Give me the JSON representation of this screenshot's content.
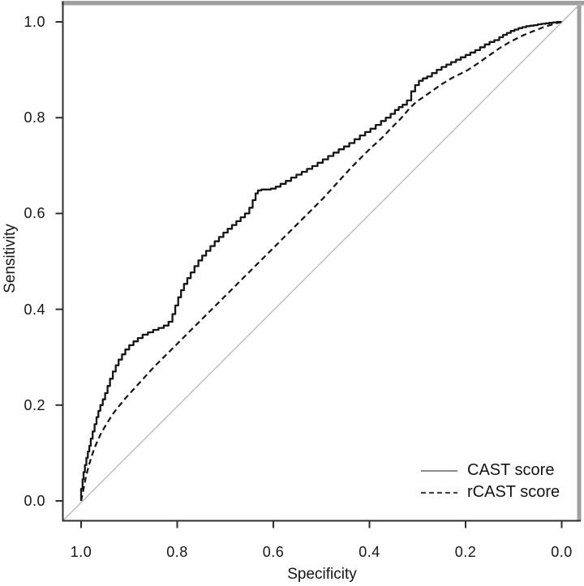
{
  "figure": {
    "background": "#ffffff"
  },
  "chart_data": {
    "type": "line",
    "subtype": "roc-curves",
    "title": "",
    "xlabel": "Specificity",
    "ylabel": "Sensitivity",
    "x_tick_labels": [
      "1.0",
      "0.8",
      "0.6",
      "0.4",
      "0.2",
      "0.0"
    ],
    "y_tick_labels": [
      "0.0",
      "0.2",
      "0.4",
      "0.6",
      "0.8",
      "1.0"
    ],
    "x_axis": {
      "label": "Specificity",
      "min": 0.0,
      "max": 1.0,
      "reversed": true,
      "ticks": [
        1.0,
        0.8,
        0.6,
        0.4,
        0.2,
        0.0
      ]
    },
    "y_axis": {
      "label": "Sensitivity",
      "min": 0.0,
      "max": 1.0,
      "ticks": [
        0.0,
        0.2,
        0.4,
        0.6,
        0.8,
        1.0
      ]
    },
    "grid": false,
    "diagonal_reference_line": {
      "from": [
        1.0,
        0.0
      ],
      "to": [
        0.0,
        1.0
      ],
      "color": "#b3b3b3"
    },
    "legend": {
      "position": "bottom-right",
      "entries": [
        {
          "label": "CAST score",
          "line_style": "solid"
        },
        {
          "label": "rCAST score",
          "line_style": "dashed"
        }
      ]
    },
    "colors": {
      "curve": "#141414",
      "axis": "#2e2e2e",
      "text": "#161616",
      "frame": "#9f9f9f",
      "diagonal": "#b3b3b3"
    },
    "series": [
      {
        "name": "CAST score",
        "line_style": "solid",
        "color": "#141414",
        "points_format": [
          "specificity",
          "sensitivity"
        ],
        "points": [
          [
            1.0,
            0.0
          ],
          [
            0.997,
            0.025
          ],
          [
            0.995,
            0.045
          ],
          [
            0.992,
            0.06
          ],
          [
            0.989,
            0.075
          ],
          [
            0.986,
            0.09
          ],
          [
            0.983,
            0.103
          ],
          [
            0.98,
            0.115
          ],
          [
            0.976,
            0.13
          ],
          [
            0.972,
            0.145
          ],
          [
            0.968,
            0.16
          ],
          [
            0.964,
            0.175
          ],
          [
            0.96,
            0.188
          ],
          [
            0.955,
            0.2
          ],
          [
            0.95,
            0.212
          ],
          [
            0.945,
            0.225
          ],
          [
            0.94,
            0.24
          ],
          [
            0.934,
            0.255
          ],
          [
            0.928,
            0.27
          ],
          [
            0.922,
            0.283
          ],
          [
            0.915,
            0.295
          ],
          [
            0.908,
            0.306
          ],
          [
            0.9,
            0.316
          ],
          [
            0.891,
            0.325
          ],
          [
            0.882,
            0.333
          ],
          [
            0.872,
            0.34
          ],
          [
            0.861,
            0.347
          ],
          [
            0.85,
            0.352
          ],
          [
            0.839,
            0.357
          ],
          [
            0.828,
            0.361
          ],
          [
            0.818,
            0.366
          ],
          [
            0.81,
            0.374
          ],
          [
            0.804,
            0.39
          ],
          [
            0.798,
            0.408
          ],
          [
            0.792,
            0.425
          ],
          [
            0.786,
            0.44
          ],
          [
            0.779,
            0.453
          ],
          [
            0.772,
            0.465
          ],
          [
            0.764,
            0.477
          ],
          [
            0.756,
            0.49
          ],
          [
            0.748,
            0.502
          ],
          [
            0.74,
            0.512
          ],
          [
            0.731,
            0.522
          ],
          [
            0.722,
            0.532
          ],
          [
            0.713,
            0.542
          ],
          [
            0.704,
            0.551
          ],
          [
            0.695,
            0.56
          ],
          [
            0.686,
            0.568
          ],
          [
            0.677,
            0.576
          ],
          [
            0.668,
            0.584
          ],
          [
            0.659,
            0.592
          ],
          [
            0.65,
            0.6
          ],
          [
            0.643,
            0.612
          ],
          [
            0.637,
            0.628
          ],
          [
            0.632,
            0.642
          ],
          [
            0.625,
            0.648
          ],
          [
            0.615,
            0.65
          ],
          [
            0.605,
            0.65
          ],
          [
            0.595,
            0.652
          ],
          [
            0.585,
            0.656
          ],
          [
            0.574,
            0.662
          ],
          [
            0.563,
            0.668
          ],
          [
            0.552,
            0.675
          ],
          [
            0.541,
            0.681
          ],
          [
            0.53,
            0.687
          ],
          [
            0.519,
            0.693
          ],
          [
            0.508,
            0.699
          ],
          [
            0.497,
            0.706
          ],
          [
            0.486,
            0.713
          ],
          [
            0.475,
            0.72
          ],
          [
            0.464,
            0.727
          ],
          [
            0.453,
            0.734
          ],
          [
            0.442,
            0.74
          ],
          [
            0.431,
            0.747
          ],
          [
            0.42,
            0.755
          ],
          [
            0.409,
            0.763
          ],
          [
            0.398,
            0.77
          ],
          [
            0.387,
            0.777
          ],
          [
            0.376,
            0.785
          ],
          [
            0.366,
            0.793
          ],
          [
            0.356,
            0.8
          ],
          [
            0.347,
            0.808
          ],
          [
            0.339,
            0.816
          ],
          [
            0.331,
            0.822
          ],
          [
            0.322,
            0.827
          ],
          [
            0.313,
            0.836
          ],
          [
            0.305,
            0.855
          ],
          [
            0.297,
            0.868
          ],
          [
            0.289,
            0.877
          ],
          [
            0.28,
            0.882
          ],
          [
            0.27,
            0.886
          ],
          [
            0.26,
            0.893
          ],
          [
            0.25,
            0.9
          ],
          [
            0.24,
            0.906
          ],
          [
            0.23,
            0.911
          ],
          [
            0.22,
            0.916
          ],
          [
            0.21,
            0.921
          ],
          [
            0.2,
            0.926
          ],
          [
            0.19,
            0.931
          ],
          [
            0.18,
            0.936
          ],
          [
            0.17,
            0.941
          ],
          [
            0.16,
            0.947
          ],
          [
            0.15,
            0.953
          ],
          [
            0.14,
            0.958
          ],
          [
            0.13,
            0.962
          ],
          [
            0.122,
            0.968
          ],
          [
            0.114,
            0.973
          ],
          [
            0.106,
            0.977
          ],
          [
            0.098,
            0.981
          ],
          [
            0.09,
            0.984
          ],
          [
            0.082,
            0.987
          ],
          [
            0.074,
            0.989
          ],
          [
            0.066,
            0.991
          ],
          [
            0.058,
            0.992
          ],
          [
            0.05,
            0.993
          ],
          [
            0.042,
            0.995
          ],
          [
            0.034,
            0.996
          ],
          [
            0.026,
            0.997
          ],
          [
            0.018,
            0.998
          ],
          [
            0.01,
            0.999
          ],
          [
            0.0,
            1.0
          ]
        ]
      },
      {
        "name": "rCAST score",
        "line_style": "dashed",
        "color": "#141414",
        "points_format": [
          "specificity",
          "sensitivity"
        ],
        "points": [
          [
            1.0,
            0.0
          ],
          [
            0.995,
            0.025
          ],
          [
            0.99,
            0.05
          ],
          [
            0.985,
            0.07
          ],
          [
            0.979,
            0.09
          ],
          [
            0.973,
            0.108
          ],
          [
            0.966,
            0.125
          ],
          [
            0.959,
            0.14
          ],
          [
            0.951,
            0.154
          ],
          [
            0.943,
            0.167
          ],
          [
            0.935,
            0.18
          ],
          [
            0.926,
            0.192
          ],
          [
            0.917,
            0.203
          ],
          [
            0.908,
            0.214
          ],
          [
            0.898,
            0.225
          ],
          [
            0.888,
            0.236
          ],
          [
            0.878,
            0.247
          ],
          [
            0.868,
            0.258
          ],
          [
            0.858,
            0.269
          ],
          [
            0.848,
            0.28
          ],
          [
            0.838,
            0.29
          ],
          [
            0.828,
            0.3
          ],
          [
            0.818,
            0.31
          ],
          [
            0.808,
            0.32
          ],
          [
            0.798,
            0.33
          ],
          [
            0.788,
            0.34
          ],
          [
            0.778,
            0.35
          ],
          [
            0.768,
            0.36
          ],
          [
            0.758,
            0.37
          ],
          [
            0.748,
            0.38
          ],
          [
            0.738,
            0.39
          ],
          [
            0.728,
            0.4
          ],
          [
            0.718,
            0.41
          ],
          [
            0.708,
            0.42
          ],
          [
            0.698,
            0.43
          ],
          [
            0.688,
            0.44
          ],
          [
            0.678,
            0.45
          ],
          [
            0.668,
            0.46
          ],
          [
            0.658,
            0.47
          ],
          [
            0.648,
            0.48
          ],
          [
            0.638,
            0.49
          ],
          [
            0.628,
            0.5
          ],
          [
            0.618,
            0.51
          ],
          [
            0.608,
            0.52
          ],
          [
            0.598,
            0.53
          ],
          [
            0.588,
            0.54
          ],
          [
            0.578,
            0.55
          ],
          [
            0.568,
            0.56
          ],
          [
            0.558,
            0.57
          ],
          [
            0.548,
            0.58
          ],
          [
            0.538,
            0.59
          ],
          [
            0.528,
            0.6
          ],
          [
            0.518,
            0.61
          ],
          [
            0.508,
            0.62
          ],
          [
            0.498,
            0.63
          ],
          [
            0.488,
            0.641
          ],
          [
            0.478,
            0.652
          ],
          [
            0.468,
            0.663
          ],
          [
            0.458,
            0.674
          ],
          [
            0.448,
            0.685
          ],
          [
            0.438,
            0.696
          ],
          [
            0.428,
            0.706
          ],
          [
            0.418,
            0.716
          ],
          [
            0.408,
            0.726
          ],
          [
            0.398,
            0.736
          ],
          [
            0.388,
            0.745
          ],
          [
            0.378,
            0.754
          ],
          [
            0.368,
            0.764
          ],
          [
            0.358,
            0.775
          ],
          [
            0.348,
            0.785
          ],
          [
            0.338,
            0.795
          ],
          [
            0.328,
            0.806
          ],
          [
            0.318,
            0.818
          ],
          [
            0.308,
            0.828
          ],
          [
            0.298,
            0.836
          ],
          [
            0.288,
            0.843
          ],
          [
            0.278,
            0.85
          ],
          [
            0.268,
            0.857
          ],
          [
            0.258,
            0.864
          ],
          [
            0.248,
            0.871
          ],
          [
            0.238,
            0.877
          ],
          [
            0.228,
            0.883
          ],
          [
            0.218,
            0.888
          ],
          [
            0.208,
            0.893
          ],
          [
            0.198,
            0.898
          ],
          [
            0.188,
            0.904
          ],
          [
            0.178,
            0.911
          ],
          [
            0.168,
            0.918
          ],
          [
            0.158,
            0.925
          ],
          [
            0.148,
            0.932
          ],
          [
            0.138,
            0.939
          ],
          [
            0.128,
            0.946
          ],
          [
            0.118,
            0.952
          ],
          [
            0.108,
            0.958
          ],
          [
            0.098,
            0.963
          ],
          [
            0.088,
            0.968
          ],
          [
            0.078,
            0.973
          ],
          [
            0.068,
            0.977
          ],
          [
            0.058,
            0.981
          ],
          [
            0.048,
            0.985
          ],
          [
            0.038,
            0.989
          ],
          [
            0.028,
            0.992
          ],
          [
            0.018,
            0.995
          ],
          [
            0.008,
            0.998
          ],
          [
            0.0,
            1.0
          ]
        ]
      }
    ]
  }
}
